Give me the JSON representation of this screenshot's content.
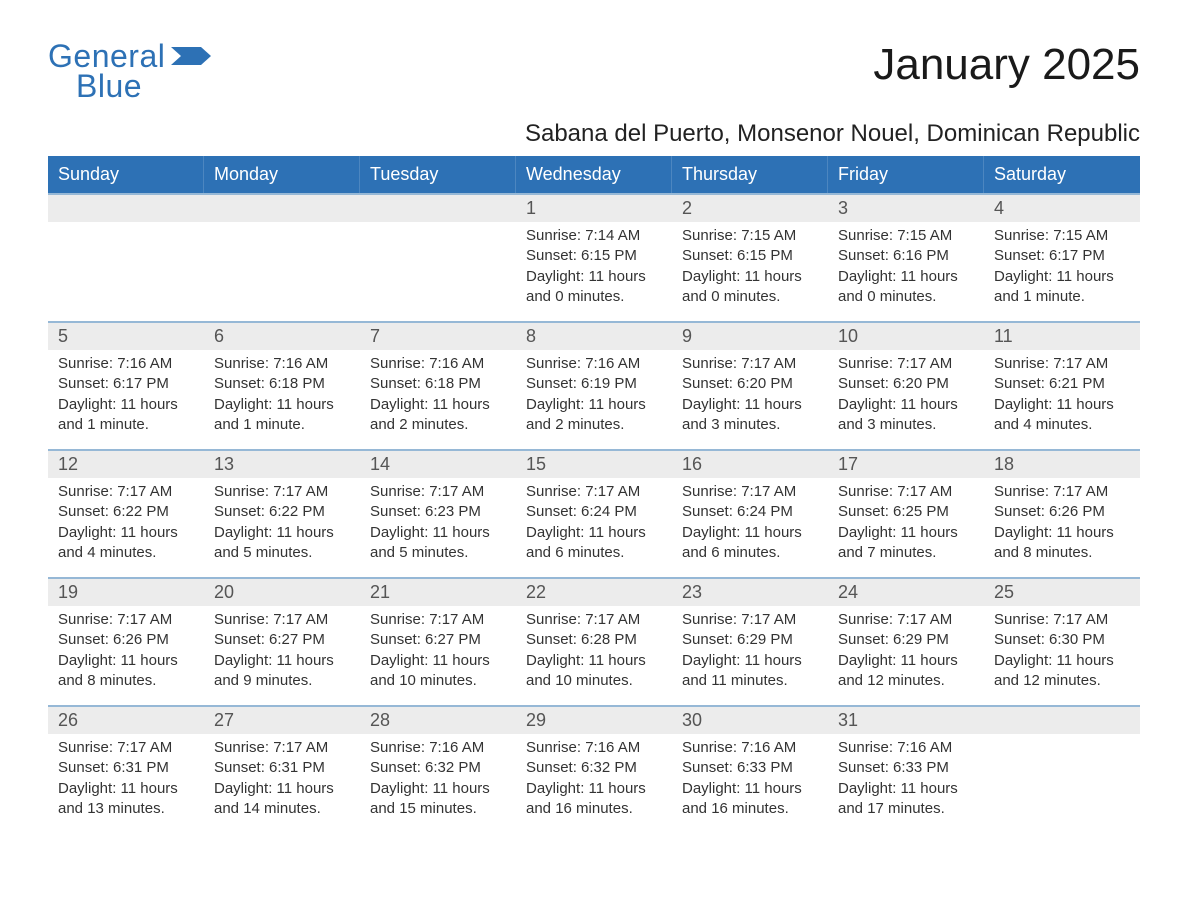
{
  "colors": {
    "accent": "#2d71b5",
    "header_text": "#ffffff",
    "daynum_bg": "#ececec",
    "text": "#222222",
    "rule": "#96b8d6",
    "page_bg": "#ffffff"
  },
  "typography": {
    "title_fontsize_pt": 33,
    "subtitle_fontsize_pt": 18,
    "weekday_fontsize_pt": 14,
    "body_fontsize_pt": 11
  },
  "logo": {
    "text1": "General",
    "text2": "Blue"
  },
  "title": "January 2025",
  "subtitle": "Sabana del Puerto, Monsenor Nouel, Dominican Republic",
  "weekdays": [
    "Sunday",
    "Monday",
    "Tuesday",
    "Wednesday",
    "Thursday",
    "Friday",
    "Saturday"
  ],
  "calendar": {
    "start_weekday_index": 3,
    "days": [
      {
        "n": 1,
        "sunrise": "7:14 AM",
        "sunset": "6:15 PM",
        "daylight": "11 hours and 0 minutes."
      },
      {
        "n": 2,
        "sunrise": "7:15 AM",
        "sunset": "6:15 PM",
        "daylight": "11 hours and 0 minutes."
      },
      {
        "n": 3,
        "sunrise": "7:15 AM",
        "sunset": "6:16 PM",
        "daylight": "11 hours and 0 minutes."
      },
      {
        "n": 4,
        "sunrise": "7:15 AM",
        "sunset": "6:17 PM",
        "daylight": "11 hours and 1 minute."
      },
      {
        "n": 5,
        "sunrise": "7:16 AM",
        "sunset": "6:17 PM",
        "daylight": "11 hours and 1 minute."
      },
      {
        "n": 6,
        "sunrise": "7:16 AM",
        "sunset": "6:18 PM",
        "daylight": "11 hours and 1 minute."
      },
      {
        "n": 7,
        "sunrise": "7:16 AM",
        "sunset": "6:18 PM",
        "daylight": "11 hours and 2 minutes."
      },
      {
        "n": 8,
        "sunrise": "7:16 AM",
        "sunset": "6:19 PM",
        "daylight": "11 hours and 2 minutes."
      },
      {
        "n": 9,
        "sunrise": "7:17 AM",
        "sunset": "6:20 PM",
        "daylight": "11 hours and 3 minutes."
      },
      {
        "n": 10,
        "sunrise": "7:17 AM",
        "sunset": "6:20 PM",
        "daylight": "11 hours and 3 minutes."
      },
      {
        "n": 11,
        "sunrise": "7:17 AM",
        "sunset": "6:21 PM",
        "daylight": "11 hours and 4 minutes."
      },
      {
        "n": 12,
        "sunrise": "7:17 AM",
        "sunset": "6:22 PM",
        "daylight": "11 hours and 4 minutes."
      },
      {
        "n": 13,
        "sunrise": "7:17 AM",
        "sunset": "6:22 PM",
        "daylight": "11 hours and 5 minutes."
      },
      {
        "n": 14,
        "sunrise": "7:17 AM",
        "sunset": "6:23 PM",
        "daylight": "11 hours and 5 minutes."
      },
      {
        "n": 15,
        "sunrise": "7:17 AM",
        "sunset": "6:24 PM",
        "daylight": "11 hours and 6 minutes."
      },
      {
        "n": 16,
        "sunrise": "7:17 AM",
        "sunset": "6:24 PM",
        "daylight": "11 hours and 6 minutes."
      },
      {
        "n": 17,
        "sunrise": "7:17 AM",
        "sunset": "6:25 PM",
        "daylight": "11 hours and 7 minutes."
      },
      {
        "n": 18,
        "sunrise": "7:17 AM",
        "sunset": "6:26 PM",
        "daylight": "11 hours and 8 minutes."
      },
      {
        "n": 19,
        "sunrise": "7:17 AM",
        "sunset": "6:26 PM",
        "daylight": "11 hours and 8 minutes."
      },
      {
        "n": 20,
        "sunrise": "7:17 AM",
        "sunset": "6:27 PM",
        "daylight": "11 hours and 9 minutes."
      },
      {
        "n": 21,
        "sunrise": "7:17 AM",
        "sunset": "6:27 PM",
        "daylight": "11 hours and 10 minutes."
      },
      {
        "n": 22,
        "sunrise": "7:17 AM",
        "sunset": "6:28 PM",
        "daylight": "11 hours and 10 minutes."
      },
      {
        "n": 23,
        "sunrise": "7:17 AM",
        "sunset": "6:29 PM",
        "daylight": "11 hours and 11 minutes."
      },
      {
        "n": 24,
        "sunrise": "7:17 AM",
        "sunset": "6:29 PM",
        "daylight": "11 hours and 12 minutes."
      },
      {
        "n": 25,
        "sunrise": "7:17 AM",
        "sunset": "6:30 PM",
        "daylight": "11 hours and 12 minutes."
      },
      {
        "n": 26,
        "sunrise": "7:17 AM",
        "sunset": "6:31 PM",
        "daylight": "11 hours and 13 minutes."
      },
      {
        "n": 27,
        "sunrise": "7:17 AM",
        "sunset": "6:31 PM",
        "daylight": "11 hours and 14 minutes."
      },
      {
        "n": 28,
        "sunrise": "7:16 AM",
        "sunset": "6:32 PM",
        "daylight": "11 hours and 15 minutes."
      },
      {
        "n": 29,
        "sunrise": "7:16 AM",
        "sunset": "6:32 PM",
        "daylight": "11 hours and 16 minutes."
      },
      {
        "n": 30,
        "sunrise": "7:16 AM",
        "sunset": "6:33 PM",
        "daylight": "11 hours and 16 minutes."
      },
      {
        "n": 31,
        "sunrise": "7:16 AM",
        "sunset": "6:33 PM",
        "daylight": "11 hours and 17 minutes."
      }
    ]
  },
  "labels": {
    "sunrise": "Sunrise:",
    "sunset": "Sunset:",
    "daylight": "Daylight:"
  }
}
